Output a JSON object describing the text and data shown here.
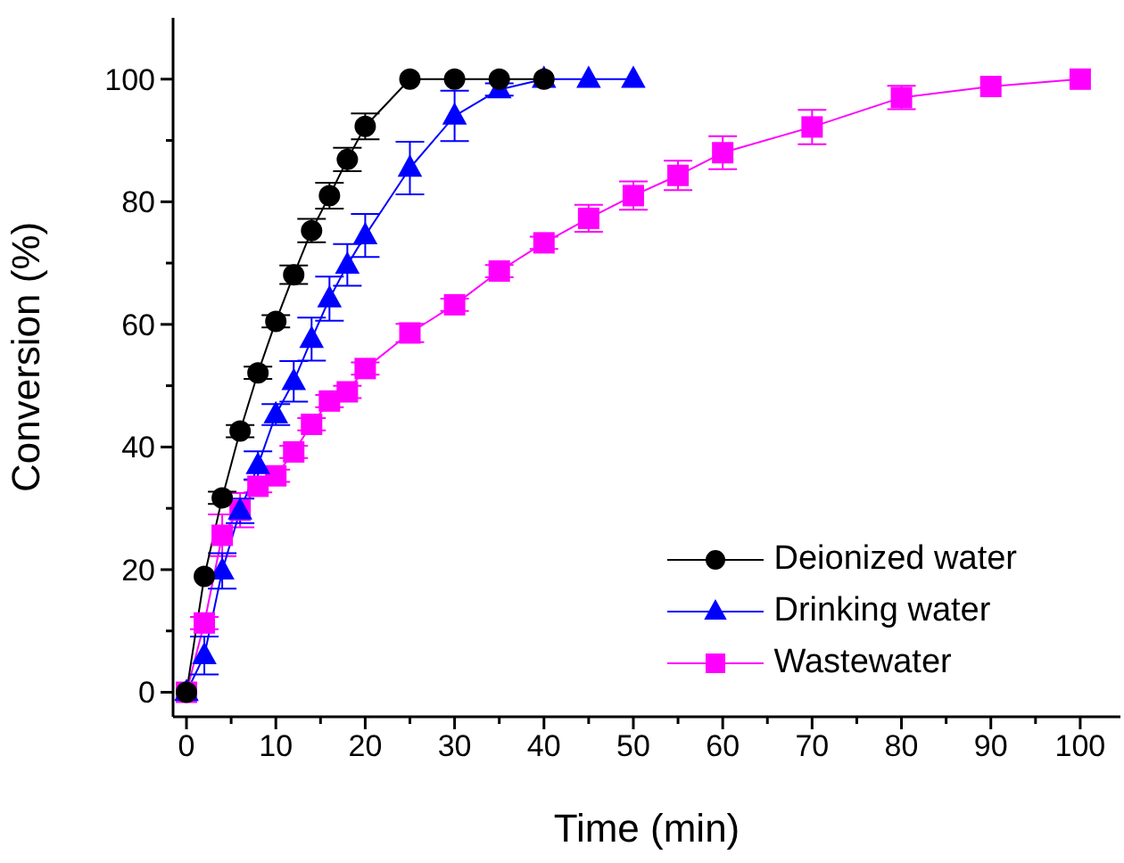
{
  "chart_data": {
    "type": "line",
    "xlabel": "Time (min)",
    "ylabel": "Conversion (%)",
    "xlim": [
      -1.5,
      104.5
    ],
    "ylim": [
      -4,
      110
    ],
    "xticks": [
      0,
      {
        "value": 5,
        "label": null
      },
      10,
      {
        "value": 15,
        "label": null
      },
      20,
      {
        "value": 25,
        "label": null
      },
      30,
      {
        "value": 35,
        "label": null
      },
      40,
      {
        "value": 45,
        "label": null
      },
      50,
      {
        "value": 55,
        "label": null
      },
      60,
      {
        "value": 65,
        "label": null
      },
      70,
      {
        "value": 75,
        "label": null
      },
      80,
      {
        "value": 85,
        "label": null
      },
      90,
      {
        "value": 95,
        "label": null
      },
      100
    ],
    "yticks": [
      0,
      {
        "value": 10,
        "label": null
      },
      20,
      {
        "value": 30,
        "label": null
      },
      40,
      {
        "value": 50,
        "label": null
      },
      60,
      {
        "value": 70,
        "label": null
      },
      80,
      {
        "value": 90,
        "label": null
      },
      100
    ],
    "grid": false,
    "legend": "bottom right",
    "line_style": "solid",
    "series": [
      {
        "name": "Deionized water",
        "color": "#000000",
        "marker": "circle",
        "x": [
          0,
          2,
          4,
          6,
          8,
          10,
          12,
          14,
          16,
          18,
          20,
          25,
          30,
          35,
          40
        ],
        "values": [
          0,
          18.9,
          31.7,
          42.6,
          52.1,
          60.5,
          68.1,
          75.3,
          81.0,
          86.9,
          92.3,
          100,
          100,
          100,
          100
        ],
        "errors": [
          null,
          null,
          1,
          1,
          1,
          1,
          1.5,
          1.9,
          2.1,
          1.9,
          2.1,
          null,
          null,
          null,
          null
        ]
      },
      {
        "name": "Drinking water",
        "color": "#0000ff",
        "marker": "triangle",
        "x": [
          0,
          2,
          4,
          6,
          8,
          10,
          12,
          14,
          16,
          18,
          20,
          25,
          30,
          35,
          40,
          45,
          50
        ],
        "values": [
          0,
          6.0,
          19.8,
          29.6,
          37.0,
          45.3,
          50.7,
          57.6,
          64.2,
          69.7,
          74.5,
          85.5,
          94.0,
          98.3,
          100,
          100,
          100
        ],
        "errors": [
          null,
          3.1,
          2.9,
          2,
          2.3,
          1.7,
          3.3,
          3.5,
          3.6,
          3.4,
          3.5,
          4.3,
          4.1,
          1,
          null,
          null,
          null
        ]
      },
      {
        "name": "Wastewater",
        "color": "#ff00ff",
        "marker": "square",
        "x": [
          0,
          2,
          4,
          6,
          8,
          10,
          12,
          14,
          16,
          18,
          20,
          25,
          30,
          35,
          40,
          45,
          50,
          55,
          60,
          70,
          80,
          90,
          100
        ],
        "values": [
          0,
          11.3,
          25.6,
          29.7,
          33.6,
          35.3,
          39.2,
          43.7,
          47.5,
          49.0,
          52.8,
          58.6,
          63.2,
          68.7,
          73.3,
          77.3,
          81.0,
          84.3,
          88.0,
          92.2,
          97.0,
          98.8,
          100
        ],
        "errors": [
          null,
          1,
          3.4,
          2.8,
          1,
          1,
          1,
          1,
          1,
          1,
          1,
          1.5,
          1,
          1,
          1,
          2.2,
          2.3,
          2.4,
          2.7,
          2.8,
          1.9,
          null,
          null
        ]
      }
    ]
  }
}
